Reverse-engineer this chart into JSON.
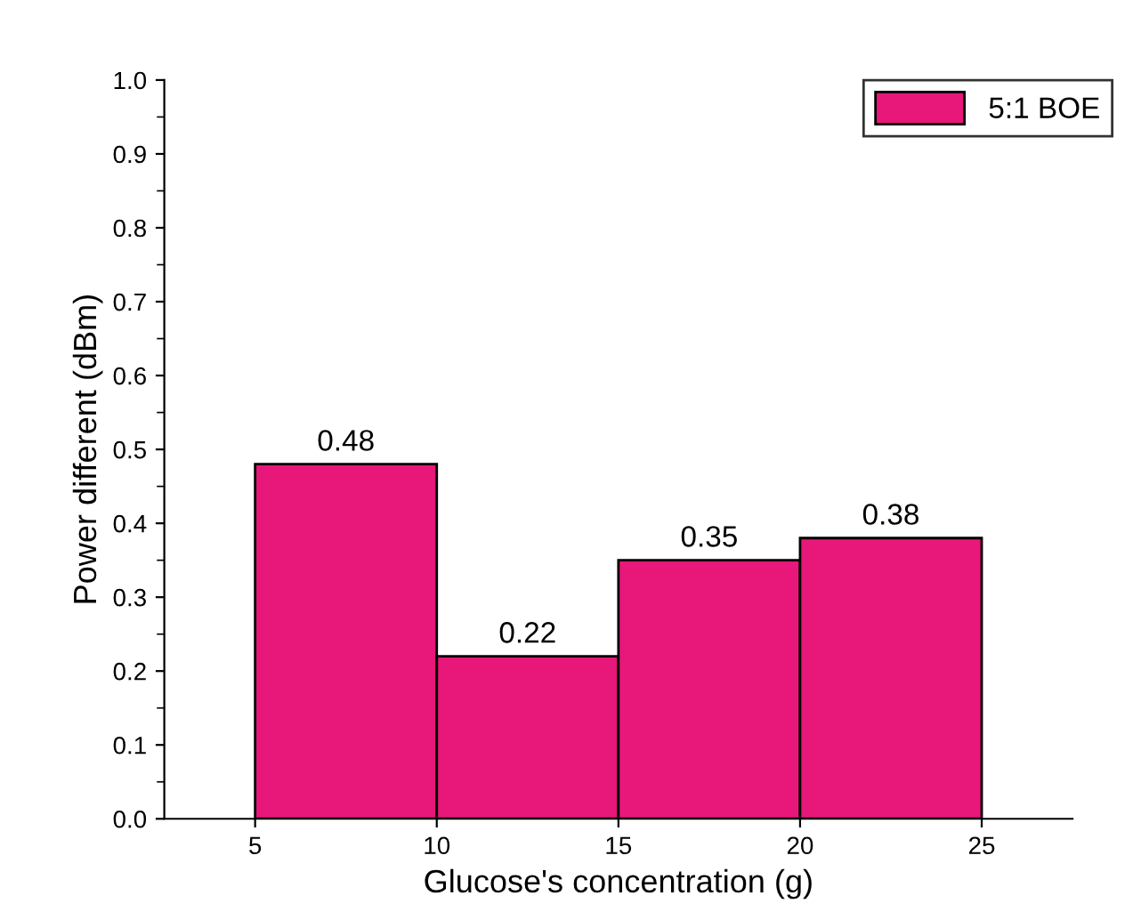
{
  "chart_data": {
    "type": "histogram",
    "xlabel": "Glucose's concentration (g)",
    "ylabel": "Power different (dBm)",
    "bins": [
      5,
      10,
      15,
      20,
      25
    ],
    "series": [
      {
        "name": "5:1 BOE",
        "color": "#e8177a",
        "values": [
          0.48,
          0.22,
          0.35,
          0.38
        ]
      }
    ],
    "xlim": [
      2.5,
      27.5
    ],
    "xticks": [
      5,
      10,
      15,
      20,
      25
    ],
    "ylim": [
      0,
      1
    ],
    "yticks": [
      {
        "value": 0,
        "label": "0.0"
      },
      0.1,
      0.2,
      0.3,
      0.4,
      0.5,
      0.6,
      0.7,
      0.8,
      0.9,
      {
        "value": 1,
        "label": "1.0"
      }
    ],
    "data_labels": true,
    "legend": "top right",
    "grid": false
  }
}
